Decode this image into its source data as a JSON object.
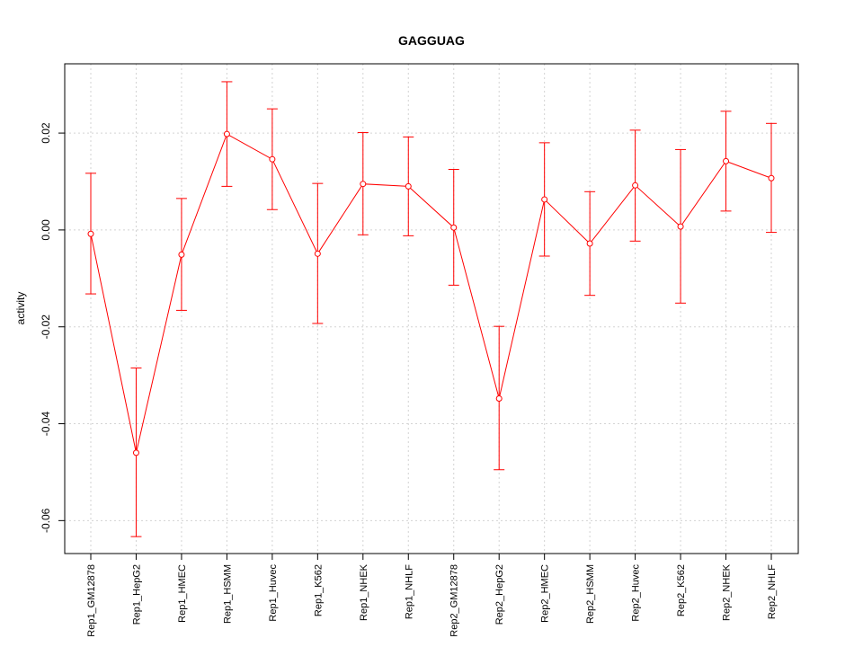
{
  "chart_data": {
    "type": "line",
    "title": "GAGGUAG",
    "xlabel": "",
    "ylabel": "activity",
    "ylim": [
      -0.0668,
      0.0343
    ],
    "yticks": [
      -0.06,
      -0.04,
      -0.02,
      0.0,
      0.02
    ],
    "ytick_labels": [
      "-0.06",
      "-0.04",
      "-0.02",
      "0.00",
      "0.02"
    ],
    "grid": true,
    "series_color": "#ff0000",
    "grid_color": "#d3d3d3",
    "categories": [
      "Rep1_GM12878",
      "Rep1_HepG2",
      "Rep1_HMEC",
      "Rep1_HSMM",
      "Rep1_Huvec",
      "Rep1_K562",
      "Rep1_NHEK",
      "Rep1_NHLF",
      "Rep2_GM12878",
      "Rep2_HepG2",
      "Rep2_HMEC",
      "Rep2_HSMM",
      "Rep2_Huvec",
      "Rep2_K562",
      "Rep2_NHEK",
      "Rep2_NHLF"
    ],
    "values": [
      -0.0008,
      -0.046,
      -0.0051,
      0.0198,
      0.0146,
      -0.0049,
      0.0095,
      0.009,
      0.0005,
      -0.0348,
      0.0063,
      -0.0028,
      0.0092,
      0.0007,
      0.0142,
      0.0107
    ],
    "error_upper": [
      0.0117,
      -0.0285,
      0.0065,
      0.0306,
      0.025,
      0.0096,
      0.0201,
      0.0192,
      0.0125,
      -0.0199,
      0.018,
      0.0079,
      0.0206,
      0.0166,
      0.0245,
      0.022
    ],
    "error_lower": [
      -0.0132,
      -0.0633,
      -0.0166,
      0.009,
      0.0042,
      -0.0193,
      -0.001,
      -0.0012,
      -0.0114,
      -0.0495,
      -0.0054,
      -0.0135,
      -0.0023,
      -0.0151,
      0.0039,
      -0.0005
    ]
  }
}
